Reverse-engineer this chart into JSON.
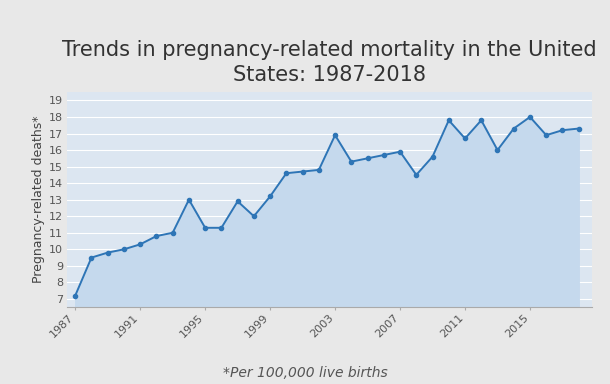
{
  "title": "Trends in pregnancy-related mortality in the United\nStates: 1987-2018",
  "ylabel": "Pregnancy-related deaths*",
  "footnote": "*Per 100,000 live births",
  "years": [
    1987,
    1988,
    1989,
    1990,
    1991,
    1992,
    1993,
    1994,
    1995,
    1996,
    1997,
    1998,
    1999,
    2000,
    2001,
    2002,
    2003,
    2004,
    2005,
    2006,
    2007,
    2008,
    2009,
    2010,
    2011,
    2012,
    2013,
    2014,
    2015,
    2016,
    2017,
    2018
  ],
  "values": [
    7.2,
    9.5,
    9.8,
    10.0,
    10.3,
    10.8,
    11.0,
    13.0,
    11.3,
    11.3,
    12.9,
    12.0,
    13.2,
    14.6,
    14.7,
    14.8,
    16.9,
    15.3,
    15.5,
    15.7,
    15.9,
    14.5,
    15.6,
    17.8,
    16.7,
    17.8,
    16.0,
    17.3,
    18.0,
    16.9,
    17.2,
    17.3
  ],
  "line_color": "#2e75b6",
  "fill_color": "#c5d9ed",
  "background_color": "#e8e8e8",
  "plot_bg_color": "#dce6f1",
  "yticks": [
    7,
    8,
    9,
    10,
    11,
    12,
    13,
    14,
    15,
    16,
    17,
    18,
    19
  ],
  "xtick_years": [
    1987,
    1991,
    1995,
    1999,
    2003,
    2007,
    2011,
    2015
  ],
  "ylim": [
    6.5,
    19.5
  ],
  "xlim": [
    1986.5,
    2018.8
  ],
  "title_fontsize": 15,
  "ylabel_fontsize": 9,
  "footnote_fontsize": 10,
  "tick_fontsize": 8,
  "fill_baseline": 6.5
}
